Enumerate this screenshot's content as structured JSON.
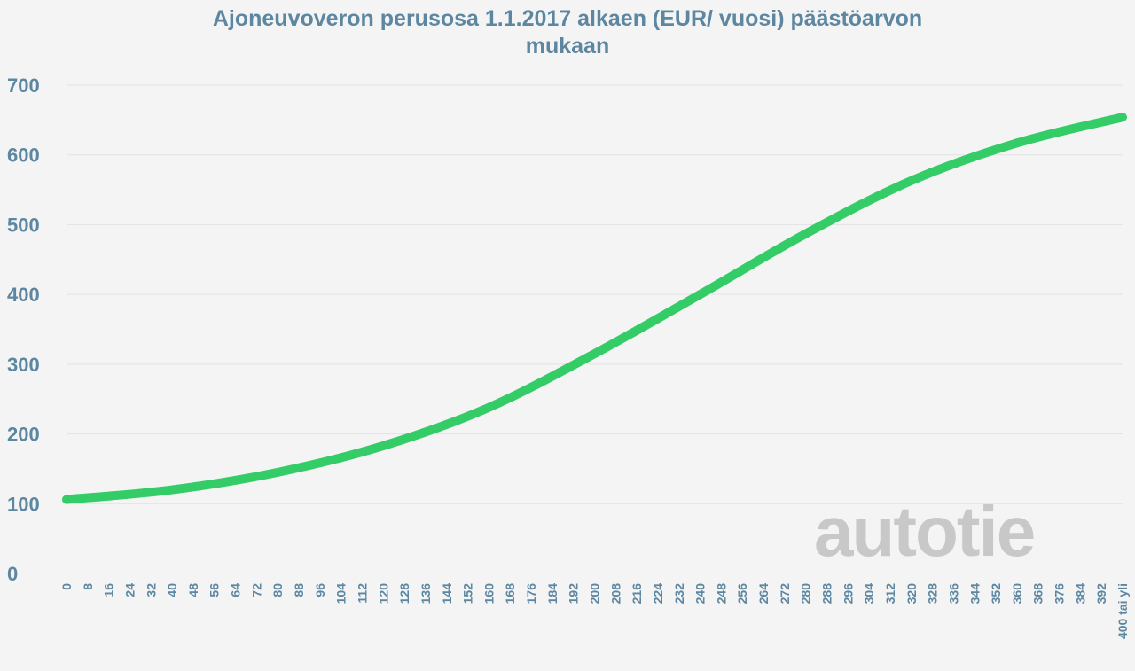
{
  "chart_data": {
    "type": "line",
    "title_lines": [
      "Ajoneuvoveron perusosa 1.1.2017 alkaen (EUR/ vuosi) päästöarvon",
      "mukaan"
    ],
    "xlabel": "",
    "ylabel": "",
    "ylim": [
      0,
      700
    ],
    "yticks": [
      0,
      100,
      200,
      300,
      400,
      500,
      600,
      700
    ],
    "grid": true,
    "legend": "none",
    "x_tick_labels": [
      "0",
      "8",
      "16",
      "24",
      "32",
      "40",
      "48",
      "56",
      "64",
      "72",
      "80",
      "88",
      "96",
      "104",
      "112",
      "120",
      "128",
      "136",
      "144",
      "152",
      "160",
      "168",
      "176",
      "184",
      "192",
      "200",
      "208",
      "216",
      "224",
      "232",
      "240",
      "248",
      "256",
      "264",
      "272",
      "280",
      "288",
      "296",
      "304",
      "312",
      "320",
      "328",
      "336",
      "344",
      "352",
      "360",
      "368",
      "376",
      "384",
      "392",
      "400 tai yli"
    ],
    "series": [
      {
        "color": "#33cc66",
        "x": [
          0,
          40,
          80,
          120,
          160,
          200,
          240,
          280,
          320,
          360,
          400
        ],
        "y": [
          106,
          120,
          145,
          183,
          238,
          315,
          400,
          487,
          563,
          617,
          654
        ]
      }
    ]
  },
  "watermark": "autotie"
}
